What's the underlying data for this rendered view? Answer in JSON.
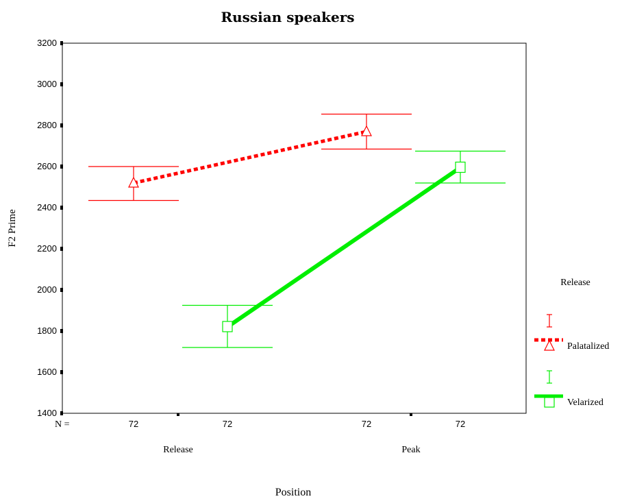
{
  "chart_data": {
    "type": "line",
    "title": "Russian speakers",
    "xlabel": "Position",
    "ylabel": "F2 Prime",
    "ylim": [
      1400,
      3200
    ],
    "yticks": [
      1400,
      1600,
      1800,
      2000,
      2200,
      2400,
      2600,
      2800,
      3000,
      3200
    ],
    "categories": [
      "Release",
      "Peak"
    ],
    "n_label": "N =",
    "legend": {
      "title": "Release",
      "position": "right"
    },
    "series": [
      {
        "name": "Palatalized",
        "color": "#ff0000",
        "line_style": "dotted",
        "marker": "triangle",
        "n": [
          "72",
          "72"
        ],
        "values": [
          2520,
          2770
        ],
        "error_low": [
          2435,
          2685
        ],
        "error_high": [
          2600,
          2855
        ]
      },
      {
        "name": "Velarized",
        "color": "#00ee00",
        "line_style": "solid",
        "marker": "square",
        "n": [
          "72",
          "72"
        ],
        "values": [
          1820,
          2595
        ],
        "error_low": [
          1720,
          2520
        ],
        "error_high": [
          1925,
          2675
        ]
      }
    ]
  }
}
